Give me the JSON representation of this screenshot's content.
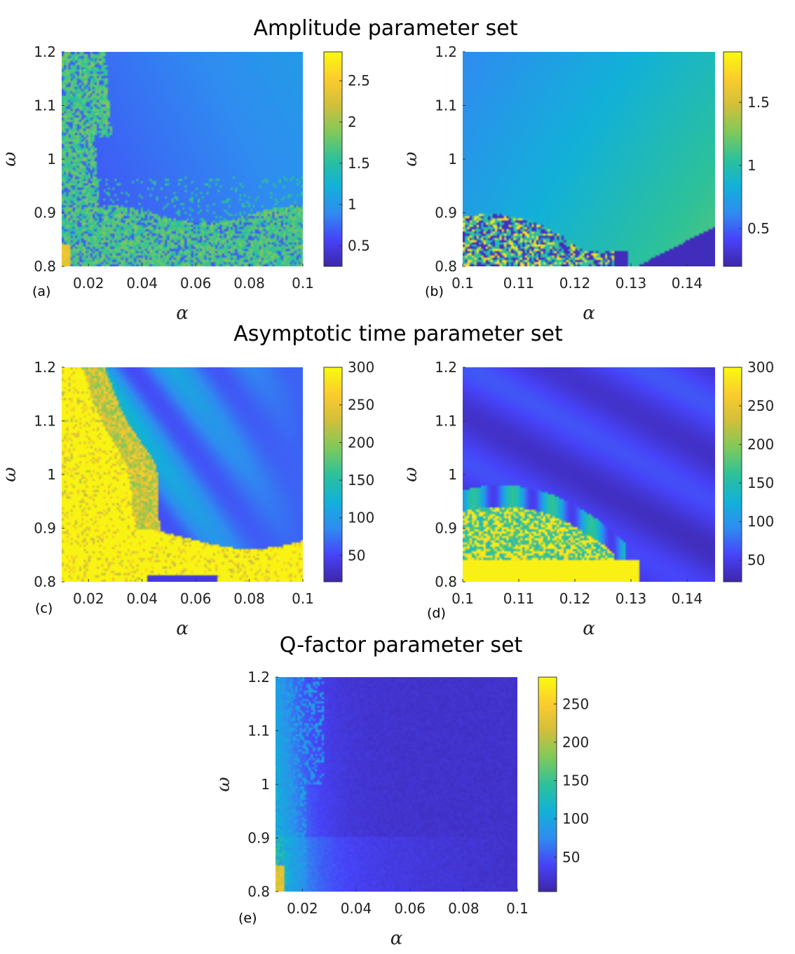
{
  "section_titles": [
    "Amplitude parameter set",
    "Asymptotic time parameter set",
    "Q-factor parameter set"
  ],
  "colormap": [
    "#3e26a8",
    "#4743f8",
    "#2f8cf0",
    "#12b1d8",
    "#2dc19a",
    "#7fc95a",
    "#d1bf3b",
    "#fbcc2d",
    "#f9fb0e"
  ],
  "chart_data": [
    {
      "panel": "(a)",
      "type": "heatmap",
      "xlabel": "α",
      "ylabel": "ω",
      "xlim": [
        0.01,
        0.1
      ],
      "ylim": [
        0.8,
        1.2
      ],
      "xticks": [
        "0.02",
        "0.04",
        "0.06",
        "0.08",
        "0.1"
      ],
      "xtick_values": [
        0.02,
        0.04,
        0.06,
        0.08,
        0.1
      ],
      "yticks": [
        "0.8",
        "0.9",
        "1",
        "1.1",
        "1.2"
      ],
      "ytick_values": [
        0.8,
        0.9,
        1.0,
        1.1,
        1.2
      ],
      "colorbar": {
        "range": [
          0.25,
          2.85
        ],
        "ticks": [
          "0.5",
          "1",
          "1.5",
          "2",
          "2.5"
        ],
        "tick_values": [
          0.5,
          1,
          1.5,
          2,
          2.5
        ]
      }
    },
    {
      "panel": "(b)",
      "type": "heatmap",
      "xlabel": "α",
      "ylabel": "ω",
      "xlim": [
        0.1,
        0.145
      ],
      "ylim": [
        0.8,
        1.2
      ],
      "xticks": [
        "0.1",
        "0.11",
        "0.12",
        "0.13",
        "0.14"
      ],
      "xtick_values": [
        0.1,
        0.11,
        0.12,
        0.13,
        0.14
      ],
      "yticks": [
        "0.8",
        "0.9",
        "1",
        "1.1",
        "1.2"
      ],
      "ytick_values": [
        0.8,
        0.9,
        1.0,
        1.1,
        1.2
      ],
      "colorbar": {
        "range": [
          0.2,
          1.9
        ],
        "ticks": [
          "0.5",
          "1",
          "1.5"
        ],
        "tick_values": [
          0.5,
          1,
          1.5
        ]
      }
    },
    {
      "panel": "(c)",
      "type": "heatmap",
      "xlabel": "α",
      "ylabel": "ω",
      "xlim": [
        0.01,
        0.1
      ],
      "ylim": [
        0.8,
        1.2
      ],
      "xticks": [
        "0.02",
        "0.04",
        "0.06",
        "0.08",
        "0.1"
      ],
      "xtick_values": [
        0.02,
        0.04,
        0.06,
        0.08,
        0.1
      ],
      "yticks": [
        "0.8",
        "0.9",
        "1",
        "1.1",
        "1.2"
      ],
      "ytick_values": [
        0.8,
        0.9,
        1.0,
        1.1,
        1.2
      ],
      "colorbar": {
        "range": [
          15,
          300
        ],
        "ticks": [
          "50",
          "100",
          "150",
          "200",
          "250",
          "300"
        ],
        "tick_values": [
          50,
          100,
          150,
          200,
          250,
          300
        ]
      }
    },
    {
      "panel": "(d)",
      "type": "heatmap",
      "xlabel": "α",
      "ylabel": "ω",
      "xlim": [
        0.1,
        0.145
      ],
      "ylim": [
        0.8,
        1.2
      ],
      "xticks": [
        "0.1",
        "0.11",
        "0.12",
        "0.13",
        "0.14"
      ],
      "xtick_values": [
        0.1,
        0.11,
        0.12,
        0.13,
        0.14
      ],
      "yticks": [
        "0.8",
        "0.9",
        "1",
        "1.1",
        "1.2"
      ],
      "ytick_values": [
        0.8,
        0.9,
        1.0,
        1.1,
        1.2
      ],
      "colorbar": {
        "range": [
          22,
          300
        ],
        "ticks": [
          "50",
          "100",
          "150",
          "200",
          "250",
          "300"
        ],
        "tick_values": [
          50,
          100,
          150,
          200,
          250,
          300
        ]
      }
    },
    {
      "panel": "(e)",
      "type": "heatmap",
      "xlabel": "α",
      "ylabel": "ω",
      "xlim": [
        0.01,
        0.1
      ],
      "ylim": [
        0.8,
        1.2
      ],
      "xticks": [
        "0.02",
        "0.04",
        "0.06",
        "0.08",
        "0.1"
      ],
      "xtick_values": [
        0.02,
        0.04,
        0.06,
        0.08,
        0.1
      ],
      "yticks": [
        "0.8",
        "0.9",
        "1",
        "1.1",
        "1.2"
      ],
      "ytick_values": [
        0.8,
        0.9,
        1.0,
        1.1,
        1.2
      ],
      "colorbar": {
        "range": [
          5,
          285
        ],
        "ticks": [
          "50",
          "100",
          "150",
          "200",
          "250"
        ],
        "tick_values": [
          50,
          100,
          150,
          200,
          250
        ]
      }
    }
  ]
}
